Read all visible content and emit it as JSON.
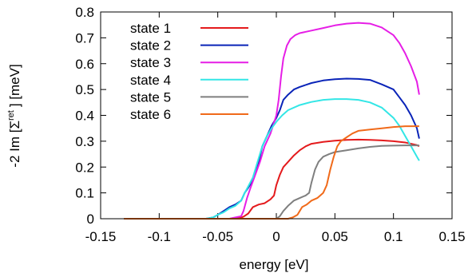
{
  "chart_data": {
    "type": "line",
    "title": "",
    "xlabel": "energy [eV]",
    "ylabel": {
      "prefix": "-2 Im [",
      "symbol": "Σ",
      "superscript": "ret",
      "suffix": "] [meV]"
    },
    "xlim": [
      -0.15,
      0.15
    ],
    "ylim": [
      0,
      0.8
    ],
    "xticks": [
      -0.15,
      -0.1,
      -0.05,
      0,
      0.05,
      0.1,
      0.15
    ],
    "xtick_labels": [
      "-0.15",
      "-0.1",
      "-0.05",
      "0",
      "0.05",
      "0.1",
      "0.15"
    ],
    "yticks": [
      0,
      0.1,
      0.2,
      0.3,
      0.4,
      0.5,
      0.6,
      0.7,
      0.8
    ],
    "ytick_labels": [
      "0",
      "0.1",
      "0.2",
      "0.3",
      "0.4",
      "0.5",
      "0.6",
      "0.7",
      "0.8"
    ],
    "grid": false,
    "legend_position": "top-left",
    "series": [
      {
        "name": "state 1",
        "color": "#e41a1c",
        "points": [
          [
            -0.13,
            0
          ],
          [
            -0.04,
            0
          ],
          [
            -0.032,
            0.002
          ],
          [
            -0.028,
            0.008
          ],
          [
            -0.024,
            0.02
          ],
          [
            -0.02,
            0.045
          ],
          [
            -0.015,
            0.055
          ],
          [
            -0.01,
            0.06
          ],
          [
            -0.005,
            0.075
          ],
          [
            -0.002,
            0.09
          ],
          [
            0,
            0.13
          ],
          [
            0.003,
            0.17
          ],
          [
            0.006,
            0.2
          ],
          [
            0.01,
            0.22
          ],
          [
            0.015,
            0.245
          ],
          [
            0.02,
            0.265
          ],
          [
            0.025,
            0.28
          ],
          [
            0.03,
            0.29
          ],
          [
            0.04,
            0.297
          ],
          [
            0.05,
            0.302
          ],
          [
            0.06,
            0.305
          ],
          [
            0.07,
            0.306
          ],
          [
            0.08,
            0.305
          ],
          [
            0.09,
            0.303
          ],
          [
            0.1,
            0.3
          ],
          [
            0.11,
            0.295
          ],
          [
            0.12,
            0.285
          ],
          [
            0.122,
            0.28
          ]
        ]
      },
      {
        "name": "state 2",
        "color": "#0a24b8",
        "points": [
          [
            -0.13,
            0
          ],
          [
            -0.06,
            0
          ],
          [
            -0.054,
            0.005
          ],
          [
            -0.05,
            0.015
          ],
          [
            -0.045,
            0.03
          ],
          [
            -0.04,
            0.045
          ],
          [
            -0.035,
            0.055
          ],
          [
            -0.03,
            0.07
          ],
          [
            -0.027,
            0.1
          ],
          [
            -0.024,
            0.12
          ],
          [
            -0.02,
            0.15
          ],
          [
            -0.015,
            0.22
          ],
          [
            -0.012,
            0.28
          ],
          [
            -0.008,
            0.32
          ],
          [
            -0.004,
            0.36
          ],
          [
            0,
            0.39
          ],
          [
            0.003,
            0.42
          ],
          [
            0.006,
            0.46
          ],
          [
            0.01,
            0.48
          ],
          [
            0.015,
            0.5
          ],
          [
            0.02,
            0.51
          ],
          [
            0.03,
            0.525
          ],
          [
            0.04,
            0.535
          ],
          [
            0.05,
            0.54
          ],
          [
            0.06,
            0.542
          ],
          [
            0.07,
            0.541
          ],
          [
            0.08,
            0.537
          ],
          [
            0.09,
            0.52
          ],
          [
            0.1,
            0.5
          ],
          [
            0.105,
            0.47
          ],
          [
            0.11,
            0.44
          ],
          [
            0.115,
            0.4
          ],
          [
            0.12,
            0.35
          ],
          [
            0.122,
            0.31
          ]
        ]
      },
      {
        "name": "state 3",
        "color": "#e61ee6",
        "points": [
          [
            -0.13,
            0
          ],
          [
            -0.04,
            0
          ],
          [
            -0.035,
            0.005
          ],
          [
            -0.03,
            0.01
          ],
          [
            -0.028,
            0.03
          ],
          [
            -0.025,
            0.08
          ],
          [
            -0.022,
            0.12
          ],
          [
            -0.018,
            0.17
          ],
          [
            -0.014,
            0.22
          ],
          [
            -0.01,
            0.28
          ],
          [
            -0.005,
            0.33
          ],
          [
            0,
            0.4
          ],
          [
            0.002,
            0.46
          ],
          [
            0.004,
            0.55
          ],
          [
            0.006,
            0.62
          ],
          [
            0.009,
            0.67
          ],
          [
            0.012,
            0.695
          ],
          [
            0.016,
            0.71
          ],
          [
            0.02,
            0.718
          ],
          [
            0.03,
            0.728
          ],
          [
            0.04,
            0.738
          ],
          [
            0.05,
            0.748
          ],
          [
            0.06,
            0.755
          ],
          [
            0.07,
            0.758
          ],
          [
            0.08,
            0.755
          ],
          [
            0.09,
            0.74
          ],
          [
            0.1,
            0.71
          ],
          [
            0.105,
            0.68
          ],
          [
            0.11,
            0.64
          ],
          [
            0.115,
            0.59
          ],
          [
            0.12,
            0.53
          ],
          [
            0.122,
            0.48
          ]
        ]
      },
      {
        "name": "state 4",
        "color": "#33e6e6",
        "points": [
          [
            -0.13,
            0
          ],
          [
            -0.06,
            0
          ],
          [
            -0.054,
            0.005
          ],
          [
            -0.05,
            0.015
          ],
          [
            -0.045,
            0.025
          ],
          [
            -0.04,
            0.04
          ],
          [
            -0.035,
            0.05
          ],
          [
            -0.03,
            0.07
          ],
          [
            -0.027,
            0.1
          ],
          [
            -0.024,
            0.125
          ],
          [
            -0.02,
            0.16
          ],
          [
            -0.016,
            0.22
          ],
          [
            -0.012,
            0.28
          ],
          [
            -0.008,
            0.32
          ],
          [
            -0.004,
            0.35
          ],
          [
            0,
            0.375
          ],
          [
            0.005,
            0.4
          ],
          [
            0.01,
            0.42
          ],
          [
            0.02,
            0.44
          ],
          [
            0.03,
            0.452
          ],
          [
            0.04,
            0.46
          ],
          [
            0.05,
            0.463
          ],
          [
            0.06,
            0.463
          ],
          [
            0.07,
            0.46
          ],
          [
            0.08,
            0.45
          ],
          [
            0.09,
            0.43
          ],
          [
            0.1,
            0.39
          ],
          [
            0.105,
            0.36
          ],
          [
            0.11,
            0.32
          ],
          [
            0.115,
            0.28
          ],
          [
            0.12,
            0.24
          ],
          [
            0.122,
            0.225
          ]
        ]
      },
      {
        "name": "state 5",
        "color": "#7f7f7f",
        "points": [
          [
            -0.13,
            0
          ],
          [
            0,
            0
          ],
          [
            0.003,
            0.01
          ],
          [
            0.006,
            0.03
          ],
          [
            0.01,
            0.05
          ],
          [
            0.015,
            0.07
          ],
          [
            0.02,
            0.08
          ],
          [
            0.025,
            0.09
          ],
          [
            0.028,
            0.1
          ],
          [
            0.03,
            0.14
          ],
          [
            0.033,
            0.19
          ],
          [
            0.036,
            0.22
          ],
          [
            0.04,
            0.24
          ],
          [
            0.045,
            0.25
          ],
          [
            0.05,
            0.258
          ],
          [
            0.06,
            0.265
          ],
          [
            0.07,
            0.272
          ],
          [
            0.08,
            0.278
          ],
          [
            0.09,
            0.282
          ],
          [
            0.1,
            0.283
          ],
          [
            0.11,
            0.284
          ],
          [
            0.122,
            0.284
          ]
        ]
      },
      {
        "name": "state 6",
        "color": "#f06a1a",
        "points": [
          [
            -0.13,
            0
          ],
          [
            0.01,
            0
          ],
          [
            0.014,
            0.005
          ],
          [
            0.018,
            0.015
          ],
          [
            0.02,
            0.03
          ],
          [
            0.022,
            0.045
          ],
          [
            0.026,
            0.055
          ],
          [
            0.03,
            0.07
          ],
          [
            0.035,
            0.08
          ],
          [
            0.04,
            0.1
          ],
          [
            0.043,
            0.13
          ],
          [
            0.046,
            0.19
          ],
          [
            0.049,
            0.24
          ],
          [
            0.052,
            0.28
          ],
          [
            0.055,
            0.3
          ],
          [
            0.06,
            0.315
          ],
          [
            0.065,
            0.33
          ],
          [
            0.07,
            0.34
          ],
          [
            0.08,
            0.345
          ],
          [
            0.09,
            0.35
          ],
          [
            0.1,
            0.355
          ],
          [
            0.11,
            0.358
          ],
          [
            0.122,
            0.358
          ]
        ]
      }
    ]
  }
}
